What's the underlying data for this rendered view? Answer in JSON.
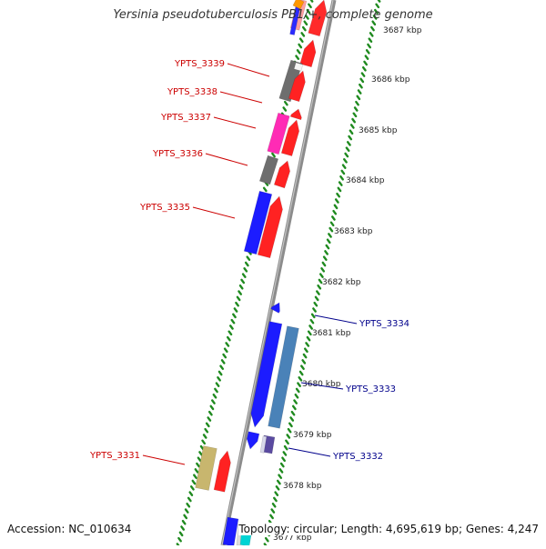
{
  "title": "Yersinia pseudotuberculosis PB1/+, complete genome",
  "footer": {
    "accession": "Accession: NC_010634",
    "summary": "Topology: circular; Length: 4,695,619 bp; Genes: 4,247"
  },
  "colors": {
    "backbone": "#8c8c8c",
    "ticks": "#1f8a1f",
    "left_label": "#cc0000",
    "right_label": "#00008b"
  },
  "scale_labels": [
    "3687 kbp",
    "3686 kbp",
    "3685 kbp",
    "3684 kbp",
    "3683 kbp",
    "3682 kbp",
    "3681 kbp",
    "3680 kbp",
    "3679 kbp",
    "3678 kbp",
    "3677 kbp"
  ],
  "gene_labels": [
    {
      "name": "YPTS_3339",
      "side": "left"
    },
    {
      "name": "YPTS_3338",
      "side": "left"
    },
    {
      "name": "YPTS_3337",
      "side": "left"
    },
    {
      "name": "YPTS_3336",
      "side": "left"
    },
    {
      "name": "YPTS_3335",
      "side": "left"
    },
    {
      "name": "YPTS_3334",
      "side": "right"
    },
    {
      "name": "YPTS_3333",
      "side": "right"
    },
    {
      "name": "YPTS_3332",
      "side": "right"
    },
    {
      "name": "YPTS_3331",
      "side": "left"
    }
  ]
}
